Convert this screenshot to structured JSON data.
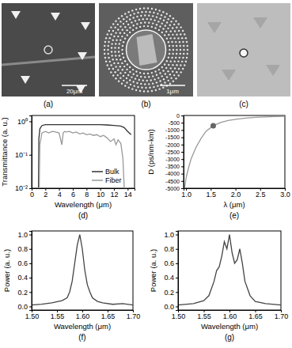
{
  "images": [
    {
      "label": "(a)",
      "scale_bar": "20μm"
    },
    {
      "label": "(b)",
      "scale_bar": "1μm"
    },
    {
      "label": "(c)"
    }
  ],
  "chart_data": [
    {
      "type": "line",
      "title": "(d)",
      "x_label": "Wavelength (μm)",
      "y_label": "Transmittance (a. u.)",
      "log": "y",
      "legend": "lower right",
      "xlim": [
        0,
        15
      ],
      "ylim": [
        0.01,
        1.5
      ],
      "xticks": [
        0,
        2,
        4,
        6,
        8,
        10,
        12,
        14
      ],
      "yticks": [
        {
          "value": 0.01,
          "label": "10⁻²"
        },
        {
          "value": 0.1,
          "label": "10⁻¹"
        },
        {
          "value": 1,
          "label": "10⁰"
        }
      ],
      "series": [
        {
          "name": "Bulk",
          "color": "#333333",
          "x": [
            0.8,
            1.0,
            1.05,
            1.2,
            1.5,
            2,
            3,
            4,
            5,
            6,
            7,
            8,
            9,
            10,
            11,
            12,
            13,
            13.5,
            14,
            14.5
          ],
          "values": [
            0.01,
            0.01,
            0.3,
            0.6,
            0.75,
            0.8,
            0.8,
            0.8,
            0.8,
            0.8,
            0.8,
            0.8,
            0.8,
            0.8,
            0.78,
            0.75,
            0.72,
            0.65,
            0.5,
            0.4
          ]
        },
        {
          "name": "Fiber",
          "color": "#999999",
          "x": [
            0.8,
            1.1,
            1.2,
            1.5,
            2,
            2.5,
            3,
            3.5,
            4,
            4.4,
            4.6,
            4.8,
            5,
            5.5,
            6,
            6.5,
            7,
            7.5,
            8,
            8.5,
            9,
            9.5,
            10,
            10.5,
            11,
            11.5,
            12,
            12.3,
            12.6,
            13,
            13.3,
            13.5,
            14
          ],
          "values": [
            0.01,
            0.01,
            0.2,
            0.45,
            0.5,
            0.45,
            0.5,
            0.48,
            0.45,
            0.2,
            0.45,
            0.5,
            0.48,
            0.5,
            0.45,
            0.48,
            0.42,
            0.45,
            0.4,
            0.42,
            0.38,
            0.4,
            0.35,
            0.38,
            0.32,
            0.25,
            0.3,
            0.2,
            0.28,
            0.22,
            0.08,
            0.01,
            0.01
          ]
        }
      ]
    },
    {
      "type": "line",
      "title": "(e)",
      "x_label": "λ (μm)",
      "y_label": "D (ps/nm-km)",
      "xlim": [
        0.95,
        3.0
      ],
      "ylim": [
        -5000,
        0
      ],
      "xticks": [
        {
          "value": 1,
          "label": "1.0"
        },
        1.5,
        {
          "value": 2,
          "label": "2.0"
        },
        2.5,
        {
          "value": 3,
          "label": "3.0"
        }
      ],
      "yticks": [
        -5000,
        -4500,
        -4000,
        -3500,
        -3000,
        -2500,
        -2000,
        -1500,
        -1000,
        -500,
        0
      ],
      "series": [
        {
          "type": "line",
          "color": "#999999",
          "x": [
            0.97,
            1.0,
            1.05,
            1.1,
            1.2,
            1.3,
            1.4,
            1.55,
            1.7,
            1.85,
            2.0,
            2.2,
            2.4,
            2.6,
            2.8,
            3.0
          ],
          "values": [
            -5000,
            -4300,
            -3600,
            -3000,
            -2200,
            -1600,
            -1100,
            -700,
            -480,
            -350,
            -260,
            -180,
            -130,
            -100,
            -75,
            -60
          ]
        },
        {
          "type": "scatter",
          "color": "#666666",
          "marker": "circle",
          "x": [
            1.55
          ],
          "values": [
            -700
          ]
        }
      ]
    },
    {
      "type": "line",
      "title": "(f)",
      "x_label": "Wavelength (μm)",
      "y_label": "Power (a. u.)",
      "xlim": [
        1.5,
        1.7
      ],
      "ylim": [
        -0.05,
        1.05
      ],
      "xticks": [
        {
          "value": 1.5,
          "label": "1.50"
        },
        1.55,
        {
          "value": 1.6,
          "label": "1.60"
        },
        1.65,
        {
          "value": 1.7,
          "label": "1.70"
        }
      ],
      "yticks": [
        {
          "value": 0,
          "label": "0.0"
        },
        0.2,
        0.4,
        0.6,
        0.8,
        {
          "value": 1,
          "label": "1.0"
        }
      ],
      "x": [
        1.5,
        1.52,
        1.54,
        1.56,
        1.57,
        1.575,
        1.58,
        1.585,
        1.59,
        1.595,
        1.6,
        1.605,
        1.61,
        1.615,
        1.62,
        1.63,
        1.64,
        1.66,
        1.68,
        1.7
      ],
      "series": [
        {
          "color": "#444444",
          "values": [
            0.02,
            0.03,
            0.05,
            0.08,
            0.12,
            0.2,
            0.35,
            0.6,
            0.85,
            1.0,
            0.8,
            0.5,
            0.3,
            0.2,
            0.12,
            0.07,
            0.05,
            0.03,
            0.04,
            0.02
          ]
        }
      ]
    },
    {
      "type": "line",
      "title": "(g)",
      "x_label": "Wavelength (μm)",
      "y_label": "Power (a. u.)",
      "xlim": [
        1.5,
        1.7
      ],
      "ylim": [
        -0.05,
        1.05
      ],
      "xticks": [
        {
          "value": 1.5,
          "label": "1.50"
        },
        1.55,
        {
          "value": 1.6,
          "label": "1.60"
        },
        1.65,
        {
          "value": 1.7,
          "label": "1.70"
        }
      ],
      "yticks": [
        {
          "value": 0,
          "label": "0.0"
        },
        0.2,
        0.4,
        0.6,
        0.8,
        {
          "value": 1,
          "label": "1.0"
        }
      ],
      "x": [
        1.5,
        1.53,
        1.55,
        1.56,
        1.57,
        1.575,
        1.58,
        1.585,
        1.59,
        1.595,
        1.6,
        1.605,
        1.61,
        1.615,
        1.62,
        1.625,
        1.63,
        1.64,
        1.65,
        1.67,
        1.7
      ],
      "series": [
        {
          "color": "#444444",
          "values": [
            0.02,
            0.04,
            0.08,
            0.15,
            0.35,
            0.5,
            0.55,
            0.7,
            0.9,
            0.8,
            1.0,
            0.75,
            0.6,
            0.65,
            0.8,
            0.6,
            0.35,
            0.15,
            0.07,
            0.04,
            0.02
          ]
        }
      ]
    }
  ]
}
